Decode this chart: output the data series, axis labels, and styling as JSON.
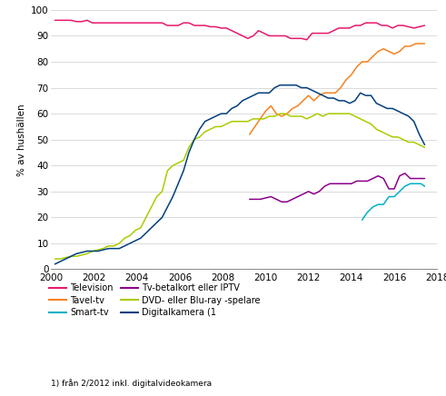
{
  "title": "",
  "ylabel": "% av hushällen",
  "xlim": [
    2000,
    2018
  ],
  "ylim": [
    0,
    100
  ],
  "xticks": [
    2000,
    2002,
    2004,
    2006,
    2008,
    2010,
    2012,
    2014,
    2016,
    2018
  ],
  "yticks": [
    0,
    10,
    20,
    30,
    40,
    50,
    60,
    70,
    80,
    90,
    100
  ],
  "footnote": "1) från 2/2012 inkl. digitalvideokamera",
  "series": {
    "Television": {
      "color": "#e8186d",
      "data_x": [
        2000.17,
        2000.42,
        2000.67,
        2000.92,
        2001.17,
        2001.42,
        2001.67,
        2001.92,
        2002.17,
        2002.42,
        2002.67,
        2002.92,
        2003.17,
        2003.42,
        2003.67,
        2003.92,
        2004.17,
        2004.42,
        2004.67,
        2004.92,
        2005.17,
        2005.42,
        2005.67,
        2005.92,
        2006.17,
        2006.42,
        2006.67,
        2006.92,
        2007.17,
        2007.42,
        2007.67,
        2007.92,
        2008.17,
        2008.42,
        2008.67,
        2008.92,
        2009.17,
        2009.42,
        2009.67,
        2009.92,
        2010.17,
        2010.42,
        2010.67,
        2010.92,
        2011.17,
        2011.42,
        2011.67,
        2011.92,
        2012.17,
        2012.42,
        2012.67,
        2012.92,
        2013.17,
        2013.42,
        2013.67,
        2013.92,
        2014.17,
        2014.42,
        2014.67,
        2014.92,
        2015.17,
        2015.42,
        2015.67,
        2015.92,
        2016.17,
        2016.42,
        2016.67,
        2016.92,
        2017.17,
        2017.42
      ],
      "data_y": [
        96,
        96,
        96,
        96,
        95.5,
        95.5,
        96,
        95,
        95,
        95,
        95,
        95,
        95,
        95,
        95,
        95,
        95,
        95,
        95,
        95,
        95,
        94,
        94,
        94,
        95,
        95,
        94,
        94,
        94,
        93.5,
        93.5,
        93,
        93,
        92,
        91,
        90,
        89,
        90,
        92,
        91,
        90,
        90,
        90,
        90,
        89,
        89,
        89,
        88.5,
        91,
        91,
        91,
        91,
        92,
        93,
        93,
        93,
        94,
        94,
        95,
        95,
        95,
        94,
        94,
        93,
        94,
        94,
        93.5,
        93,
        93.5,
        94
      ]
    },
    "Tavel-tv": {
      "color": "#f5821f",
      "data_x": [
        2009.25,
        2009.5,
        2009.75,
        2010.0,
        2010.25,
        2010.5,
        2010.75,
        2011.0,
        2011.25,
        2011.5,
        2011.75,
        2012.0,
        2012.25,
        2012.5,
        2012.75,
        2013.0,
        2013.25,
        2013.5,
        2013.75,
        2014.0,
        2014.25,
        2014.5,
        2014.75,
        2015.0,
        2015.25,
        2015.5,
        2015.75,
        2016.0,
        2016.25,
        2016.5,
        2016.75,
        2017.0,
        2017.25,
        2017.42
      ],
      "data_y": [
        52,
        55,
        58,
        61,
        63,
        60,
        59,
        60,
        62,
        63,
        65,
        67,
        65,
        67,
        68,
        68,
        68,
        70,
        73,
        75,
        78,
        80,
        80,
        82,
        84,
        85,
        84,
        83,
        84,
        86,
        86,
        87,
        87,
        87
      ]
    },
    "Smart-tv": {
      "color": "#00b0c8",
      "data_x": [
        2014.5,
        2014.75,
        2015.0,
        2015.25,
        2015.5,
        2015.75,
        2016.0,
        2016.25,
        2016.5,
        2016.75,
        2017.0,
        2017.25,
        2017.42
      ],
      "data_y": [
        19,
        22,
        24,
        25,
        25,
        28,
        28,
        30,
        32,
        33,
        33,
        33,
        32
      ]
    },
    "Tv-betalkort eller IPTV": {
      "color": "#8b008b",
      "data_x": [
        2009.25,
        2009.5,
        2009.75,
        2010.0,
        2010.25,
        2010.5,
        2010.75,
        2011.0,
        2011.25,
        2011.5,
        2011.75,
        2012.0,
        2012.25,
        2012.5,
        2012.75,
        2013.0,
        2013.25,
        2013.5,
        2013.75,
        2014.0,
        2014.25,
        2014.5,
        2014.75,
        2015.0,
        2015.25,
        2015.5,
        2015.75,
        2016.0,
        2016.25,
        2016.5,
        2016.75,
        2017.0,
        2017.25,
        2017.42
      ],
      "data_y": [
        27,
        27,
        27,
        27.5,
        28,
        27,
        26,
        26,
        27,
        28,
        29,
        30,
        29,
        30,
        32,
        33,
        33,
        33,
        33,
        33,
        34,
        34,
        34,
        35,
        36,
        35,
        31,
        31,
        36,
        37,
        35,
        35,
        35,
        35
      ]
    },
    "DVD- eller Blu-ray -spelare": {
      "color": "#aacc00",
      "data_x": [
        2000.17,
        2000.42,
        2000.67,
        2000.92,
        2001.17,
        2001.42,
        2001.67,
        2001.92,
        2002.17,
        2002.42,
        2002.67,
        2002.92,
        2003.17,
        2003.42,
        2003.67,
        2003.92,
        2004.17,
        2004.42,
        2004.67,
        2004.92,
        2005.17,
        2005.42,
        2005.67,
        2005.92,
        2006.17,
        2006.42,
        2006.67,
        2006.92,
        2007.17,
        2007.42,
        2007.67,
        2007.92,
        2008.17,
        2008.42,
        2008.67,
        2008.92,
        2009.17,
        2009.42,
        2009.67,
        2009.92,
        2010.17,
        2010.42,
        2010.67,
        2010.92,
        2011.17,
        2011.42,
        2011.67,
        2011.92,
        2012.17,
        2012.42,
        2012.67,
        2012.92,
        2013.17,
        2013.42,
        2013.67,
        2013.92,
        2014.17,
        2014.42,
        2014.67,
        2014.92,
        2015.17,
        2015.42,
        2015.67,
        2015.92,
        2016.17,
        2016.42,
        2016.67,
        2016.92,
        2017.17,
        2017.42
      ],
      "data_y": [
        4,
        4,
        4.5,
        5,
        5,
        5.5,
        6,
        7,
        7.5,
        8,
        9,
        9,
        10,
        12,
        13,
        15,
        16,
        20,
        24,
        28,
        30,
        38,
        40,
        41,
        42,
        47,
        50,
        51,
        53,
        54,
        55,
        55,
        56,
        57,
        57,
        57,
        57,
        58,
        58,
        58,
        59,
        59,
        60,
        60,
        59,
        59,
        59,
        58,
        59,
        60,
        59,
        60,
        60,
        60,
        60,
        60,
        59,
        58,
        57,
        56,
        54,
        53,
        52,
        51,
        51,
        50,
        49,
        49,
        48,
        47
      ]
    },
    "Digitalkamera (1": {
      "color": "#003f7f",
      "data_x": [
        2000.17,
        2000.42,
        2000.67,
        2000.92,
        2001.17,
        2001.42,
        2001.67,
        2001.92,
        2002.17,
        2002.42,
        2002.67,
        2002.92,
        2003.17,
        2003.42,
        2003.67,
        2003.92,
        2004.17,
        2004.42,
        2004.67,
        2004.92,
        2005.17,
        2005.42,
        2005.67,
        2005.92,
        2006.17,
        2006.42,
        2006.67,
        2006.92,
        2007.17,
        2007.42,
        2007.67,
        2007.92,
        2008.17,
        2008.42,
        2008.67,
        2008.92,
        2009.17,
        2009.42,
        2009.67,
        2009.92,
        2010.17,
        2010.42,
        2010.67,
        2010.92,
        2011.17,
        2011.42,
        2011.67,
        2011.92,
        2012.17,
        2012.42,
        2012.67,
        2012.92,
        2013.17,
        2013.42,
        2013.67,
        2013.92,
        2014.17,
        2014.42,
        2014.67,
        2014.92,
        2015.17,
        2015.42,
        2015.67,
        2015.92,
        2016.17,
        2016.42,
        2016.67,
        2016.92,
        2017.17,
        2017.42
      ],
      "data_y": [
        2,
        3,
        4,
        5,
        6,
        6.5,
        7,
        7,
        7,
        7.5,
        8,
        8,
        8,
        9,
        10,
        11,
        12,
        14,
        16,
        18,
        20,
        24,
        28,
        33,
        38,
        45,
        50,
        54,
        57,
        58,
        59,
        60,
        60,
        62,
        63,
        65,
        66,
        67,
        68,
        68,
        68,
        70,
        71,
        71,
        71,
        71,
        70,
        70,
        69,
        68,
        67,
        66,
        66,
        65,
        65,
        64,
        65,
        68,
        67,
        67,
        64,
        63,
        62,
        62,
        61,
        60,
        59,
        57,
        52,
        48
      ]
    }
  },
  "legend_order_col1": [
    "Television",
    "Smart-tv",
    "DVD- eller Blu-ray -spelare"
  ],
  "legend_order_col2": [
    "Tavel-tv",
    "Tv-betalkort eller IPTV",
    "Digitalkamera (1"
  ],
  "background_color": "#ffffff",
  "grid_color": "#cccccc"
}
